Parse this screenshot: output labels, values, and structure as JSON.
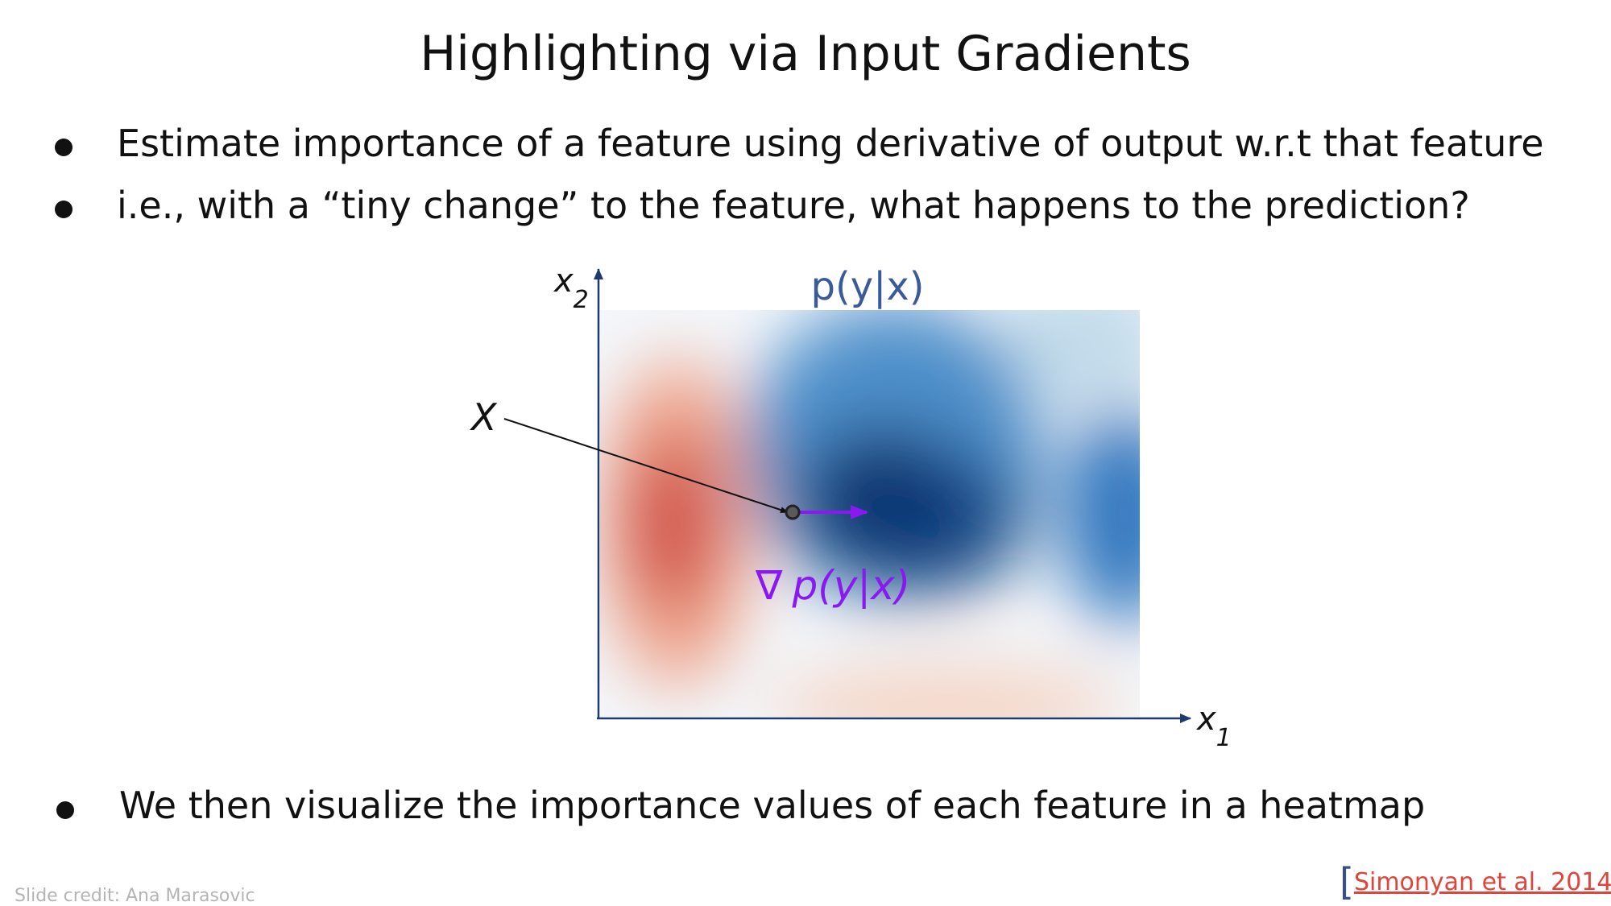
{
  "slide": {
    "title": "Highlighting via Input Gradients",
    "bullets": [
      "Estimate importance of a feature using derivative of output w.r.t that feature",
      "i.e., with a “tiny change” to the feature, what happens to the prediction?",
      "We then visualize the importance values of each feature in a heatmap"
    ],
    "credit": "Slide credit: Ana Marasovic",
    "citation": {
      "open_bracket": "[",
      "text": "Simonyan et al. 2014",
      "close_bracket": "]"
    }
  },
  "figure": {
    "plot_title": "p(y|x)",
    "x_axis_label": "x",
    "x_axis_subscript": "1",
    "y_axis_label": "x",
    "y_axis_subscript": "2",
    "point_label": "X",
    "gradient_symbol": "∇",
    "gradient_label": "p(y|x)",
    "colors": {
      "axis": "#1f3a6e",
      "title": "#3a5a9a",
      "gradient": "#8a18f0",
      "red_peak": "#cf4c44",
      "blue_peak": "#08306b",
      "blue_mid": "#2f74bd"
    }
  }
}
